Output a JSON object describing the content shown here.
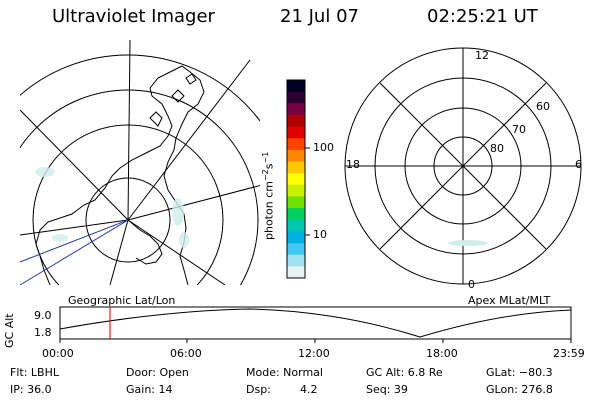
{
  "header": {
    "title": "Ultraviolet Imager",
    "date": "21 Jul 07",
    "time": "02:25:21 UT"
  },
  "geographic_panel": {
    "label": "Geographic Lat/Lon"
  },
  "colorbar": {
    "unit_label": "photon cm",
    "unit_sup1": "−2",
    "unit_mid": "s",
    "unit_sup2": "−1",
    "ticks": [
      "100",
      "10"
    ],
    "colors": [
      "#000022",
      "#2a0033",
      "#7a0044",
      "#b00000",
      "#e00000",
      "#ff4400",
      "#ff8800",
      "#ffc800",
      "#ffff00",
      "#c8f000",
      "#70e000",
      "#00d060",
      "#00c8b0",
      "#00b0e0",
      "#40c8f0",
      "#a0e0f0",
      "#e8f4f4"
    ]
  },
  "polar_panel": {
    "label": "Apex MLat/MLT",
    "mlt_labels": [
      "12",
      "18",
      "6",
      "0"
    ],
    "lat_labels": [
      "60",
      "70",
      "80"
    ]
  },
  "altitude_plot": {
    "ylabel": "GC Alt",
    "ticks": [
      "9.0",
      "1.8"
    ],
    "time_ticks": [
      "00:00",
      "06:00",
      "12:00",
      "18:00",
      "23:59"
    ]
  },
  "status": {
    "flt": "Flt: LBHL",
    "door": "Door: Open",
    "mode": "Mode: Normal",
    "gc_alt": "GC Alt: 6.8 Re",
    "glat": "GLat: −80.3",
    "ip": "IP: 36.0",
    "gain": "Gain: 14",
    "dsp_label": "Dsp:",
    "dsp_value": "4.2",
    "seq": "Seq: 39",
    "glon": "GLon: 276.8"
  }
}
